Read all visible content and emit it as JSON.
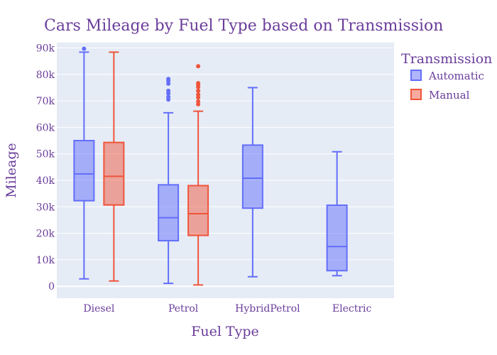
{
  "chart_data": {
    "type": "box",
    "title": "Cars Mileage by Fuel Type based on Transmission",
    "xlabel": "Fuel Type",
    "ylabel": "Mileage",
    "categories": [
      "Diesel",
      "Petrol",
      "HybridPetrol",
      "Electric"
    ],
    "ylim": [
      -4500,
      92000
    ],
    "yticks": [
      0,
      10000,
      20000,
      30000,
      40000,
      50000,
      60000,
      70000,
      80000,
      90000
    ],
    "ytick_labels": [
      "0",
      "10k",
      "20k",
      "30k",
      "40k",
      "50k",
      "60k",
      "70k",
      "80k",
      "90k"
    ],
    "grid": true,
    "legend": {
      "title": "Transmission",
      "placement": "top-right"
    },
    "series": [
      {
        "name": "Automatic",
        "color": "#636efa",
        "boxes": [
          {
            "category": "Diesel",
            "lowerfence": 2800,
            "q1": 32300,
            "median": 42400,
            "q3": 55000,
            "upperfence": 88400,
            "outliers": [
              89700
            ]
          },
          {
            "category": "Petrol",
            "lowerfence": 1100,
            "q1": 17200,
            "median": 25900,
            "q3": 38300,
            "upperfence": 65500,
            "outliers": [
              70500,
              71500,
              72800,
              73800,
              76500,
              77600,
              78300
            ]
          },
          {
            "category": "HybridPetrol",
            "lowerfence": 3600,
            "q1": 29500,
            "median": 40800,
            "q3": 53300,
            "upperfence": 75000,
            "outliers": []
          },
          {
            "category": "Electric",
            "lowerfence": 4000,
            "q1": 5900,
            "median": 15000,
            "q3": 30600,
            "upperfence": 50800,
            "outliers": []
          }
        ]
      },
      {
        "name": "Manual",
        "color": "#ef553b",
        "boxes": [
          {
            "category": "Diesel",
            "lowerfence": 2000,
            "q1": 30700,
            "median": 41500,
            "q3": 54300,
            "upperfence": 88400,
            "outliers": []
          },
          {
            "category": "Petrol",
            "lowerfence": 500,
            "q1": 19200,
            "median": 27400,
            "q3": 38000,
            "upperfence": 66100,
            "outliers": [
              68700,
              69800,
              71300,
              72400,
              73800,
              75200,
              76100,
              76700,
              83100
            ]
          }
        ]
      }
    ]
  }
}
